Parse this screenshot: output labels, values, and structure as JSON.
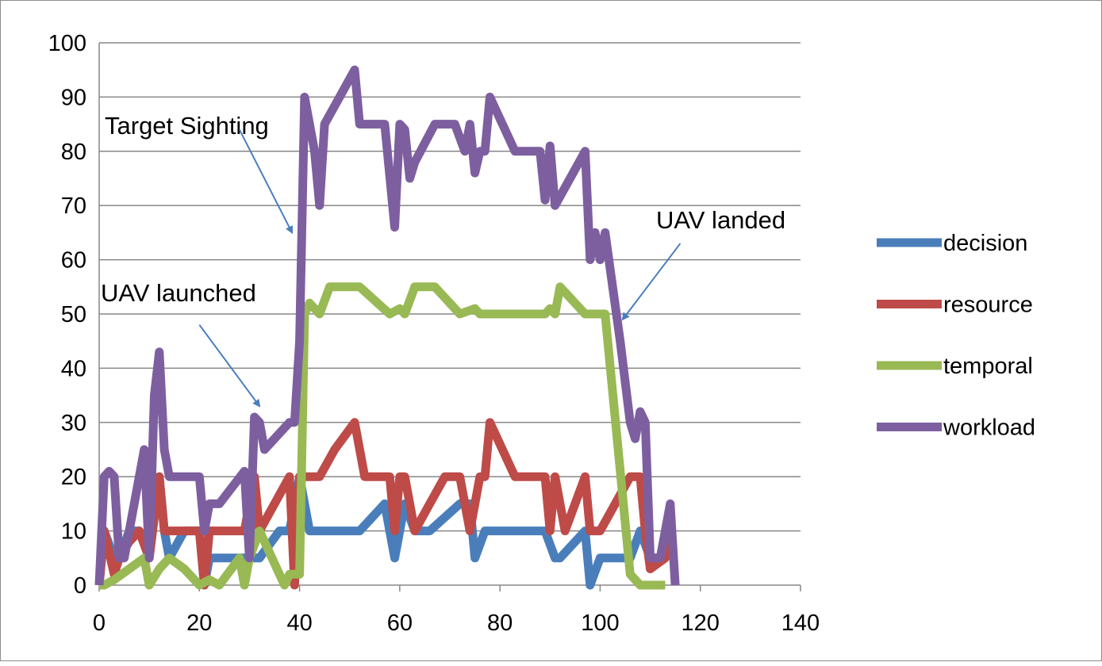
{
  "chart_data": {
    "type": "line",
    "title": "",
    "xlabel": "",
    "ylabel": "",
    "xlim": [
      0,
      140
    ],
    "ylim": [
      0,
      100
    ],
    "x_ticks": [
      0,
      20,
      40,
      60,
      80,
      100,
      120,
      140
    ],
    "y_ticks": [
      0,
      10,
      20,
      30,
      40,
      50,
      60,
      70,
      80,
      90,
      100
    ],
    "grid": "horizontal",
    "legend_position": "right",
    "series": [
      {
        "name": "decision",
        "color": "#4a7ebb",
        "points": [
          [
            0,
            0
          ],
          [
            1,
            10
          ],
          [
            3,
            5
          ],
          [
            4,
            5
          ],
          [
            6,
            10
          ],
          [
            8,
            10
          ],
          [
            10,
            5
          ],
          [
            12,
            20
          ],
          [
            13,
            10
          ],
          [
            14,
            5
          ],
          [
            17,
            10
          ],
          [
            20,
            10
          ],
          [
            21,
            0
          ],
          [
            22,
            5
          ],
          [
            24,
            5
          ],
          [
            28,
            5
          ],
          [
            30,
            5
          ],
          [
            32,
            5
          ],
          [
            36,
            10
          ],
          [
            38,
            10
          ],
          [
            40,
            20
          ],
          [
            42,
            10
          ],
          [
            47,
            10
          ],
          [
            52,
            10
          ],
          [
            57,
            15
          ],
          [
            59,
            5
          ],
          [
            61,
            15
          ],
          [
            63,
            10
          ],
          [
            66,
            10
          ],
          [
            72,
            15
          ],
          [
            74,
            15
          ],
          [
            75,
            5
          ],
          [
            77,
            10
          ],
          [
            85,
            10
          ],
          [
            89,
            10
          ],
          [
            91,
            5
          ],
          [
            92,
            5
          ],
          [
            97,
            10
          ],
          [
            98,
            0
          ],
          [
            100,
            5
          ],
          [
            106,
            5
          ],
          [
            108,
            10
          ],
          [
            110,
            5
          ],
          [
            113,
            5
          ]
        ]
      },
      {
        "name": "resource",
        "color": "#be4b48",
        "points": [
          [
            0,
            0
          ],
          [
            1,
            10
          ],
          [
            3,
            2
          ],
          [
            4,
            5
          ],
          [
            6,
            8
          ],
          [
            8,
            10
          ],
          [
            10,
            5
          ],
          [
            12,
            20
          ],
          [
            13,
            10
          ],
          [
            15,
            10
          ],
          [
            20,
            10
          ],
          [
            21,
            0
          ],
          [
            22,
            10
          ],
          [
            26,
            10
          ],
          [
            29,
            10
          ],
          [
            31,
            20
          ],
          [
            32,
            10
          ],
          [
            38,
            20
          ],
          [
            39,
            0
          ],
          [
            40,
            20
          ],
          [
            42,
            20
          ],
          [
            44,
            20
          ],
          [
            47,
            25
          ],
          [
            51,
            30
          ],
          [
            53,
            20
          ],
          [
            58,
            20
          ],
          [
            59,
            10
          ],
          [
            60,
            20
          ],
          [
            61,
            20
          ],
          [
            63,
            10
          ],
          [
            66,
            15
          ],
          [
            69,
            20
          ],
          [
            72,
            20
          ],
          [
            74,
            10
          ],
          [
            76,
            20
          ],
          [
            77,
            20
          ],
          [
            78,
            30
          ],
          [
            83,
            20
          ],
          [
            89,
            20
          ],
          [
            90,
            10
          ],
          [
            91,
            20
          ],
          [
            93,
            10
          ],
          [
            97,
            20
          ],
          [
            98,
            10
          ],
          [
            100,
            10
          ],
          [
            103,
            15
          ],
          [
            106,
            20
          ],
          [
            108,
            20
          ],
          [
            109,
            10
          ],
          [
            110,
            3
          ],
          [
            113,
            5
          ],
          [
            114,
            10
          ]
        ]
      },
      {
        "name": "temporal",
        "color": "#98b954",
        "points": [
          [
            0,
            0
          ],
          [
            1,
            0
          ],
          [
            3,
            1
          ],
          [
            6,
            3
          ],
          [
            9,
            5
          ],
          [
            10,
            0
          ],
          [
            12,
            3
          ],
          [
            14,
            5
          ],
          [
            17,
            3
          ],
          [
            20,
            0
          ],
          [
            22,
            1
          ],
          [
            24,
            0
          ],
          [
            28,
            5
          ],
          [
            29,
            0
          ],
          [
            30,
            5
          ],
          [
            32,
            10
          ],
          [
            34,
            6
          ],
          [
            37,
            0
          ],
          [
            38,
            2
          ],
          [
            40,
            2
          ],
          [
            41,
            50
          ],
          [
            42,
            52
          ],
          [
            44,
            50
          ],
          [
            46,
            55
          ],
          [
            52,
            55
          ],
          [
            58,
            50
          ],
          [
            60,
            51
          ],
          [
            61,
            50
          ],
          [
            63,
            55
          ],
          [
            67,
            55
          ],
          [
            72,
            50
          ],
          [
            75,
            51
          ],
          [
            76,
            50
          ],
          [
            89,
            50
          ],
          [
            90,
            51
          ],
          [
            91,
            50
          ],
          [
            92,
            55
          ],
          [
            97,
            50
          ],
          [
            101,
            50
          ],
          [
            106,
            2
          ],
          [
            108,
            0
          ],
          [
            113,
            0
          ]
        ]
      },
      {
        "name": "workload",
        "color": "#7d5fa0",
        "points": [
          [
            0,
            0
          ],
          [
            1,
            20
          ],
          [
            2,
            21
          ],
          [
            3,
            20
          ],
          [
            4,
            5
          ],
          [
            5,
            5
          ],
          [
            7,
            15
          ],
          [
            9,
            25
          ],
          [
            10,
            5
          ],
          [
            11,
            35
          ],
          [
            12,
            43
          ],
          [
            13,
            25
          ],
          [
            14,
            20
          ],
          [
            16,
            20
          ],
          [
            20,
            20
          ],
          [
            21,
            10
          ],
          [
            22,
            15
          ],
          [
            24,
            15
          ],
          [
            29,
            21
          ],
          [
            30,
            5
          ],
          [
            31,
            31
          ],
          [
            32,
            30
          ],
          [
            33,
            25
          ],
          [
            38,
            30
          ],
          [
            39,
            30
          ],
          [
            40,
            45
          ],
          [
            41,
            90
          ],
          [
            42,
            85
          ],
          [
            43,
            80
          ],
          [
            44,
            70
          ],
          [
            45,
            85
          ],
          [
            51,
            95
          ],
          [
            52,
            85
          ],
          [
            57,
            85
          ],
          [
            59,
            66
          ],
          [
            60,
            85
          ],
          [
            61,
            84
          ],
          [
            62,
            75
          ],
          [
            63,
            78
          ],
          [
            67,
            85
          ],
          [
            71,
            85
          ],
          [
            73,
            80
          ],
          [
            74,
            85
          ],
          [
            75,
            76
          ],
          [
            76,
            80
          ],
          [
            77,
            80
          ],
          [
            78,
            90
          ],
          [
            83,
            80
          ],
          [
            88,
            80
          ],
          [
            89,
            71
          ],
          [
            90,
            81
          ],
          [
            91,
            70
          ],
          [
            97,
            80
          ],
          [
            98,
            60
          ],
          [
            99,
            65
          ],
          [
            100,
            60
          ],
          [
            101,
            65
          ],
          [
            104,
            45
          ],
          [
            106,
            30
          ],
          [
            107,
            27
          ],
          [
            108,
            32
          ],
          [
            109,
            30
          ],
          [
            110,
            5
          ],
          [
            112,
            5
          ],
          [
            114,
            15
          ],
          [
            115,
            0
          ]
        ]
      }
    ],
    "annotations": [
      {
        "text": "Target Sighting",
        "arrow_from": [
          28,
          84
        ],
        "arrow_to": [
          38.5,
          65
        ]
      },
      {
        "text": "UAV launched",
        "arrow_from": [
          20,
          48
        ],
        "arrow_to": [
          32,
          33
        ]
      },
      {
        "text": "UAV landed",
        "arrow_from": [
          116,
          63
        ],
        "arrow_to": [
          104.5,
          49
        ]
      }
    ]
  }
}
